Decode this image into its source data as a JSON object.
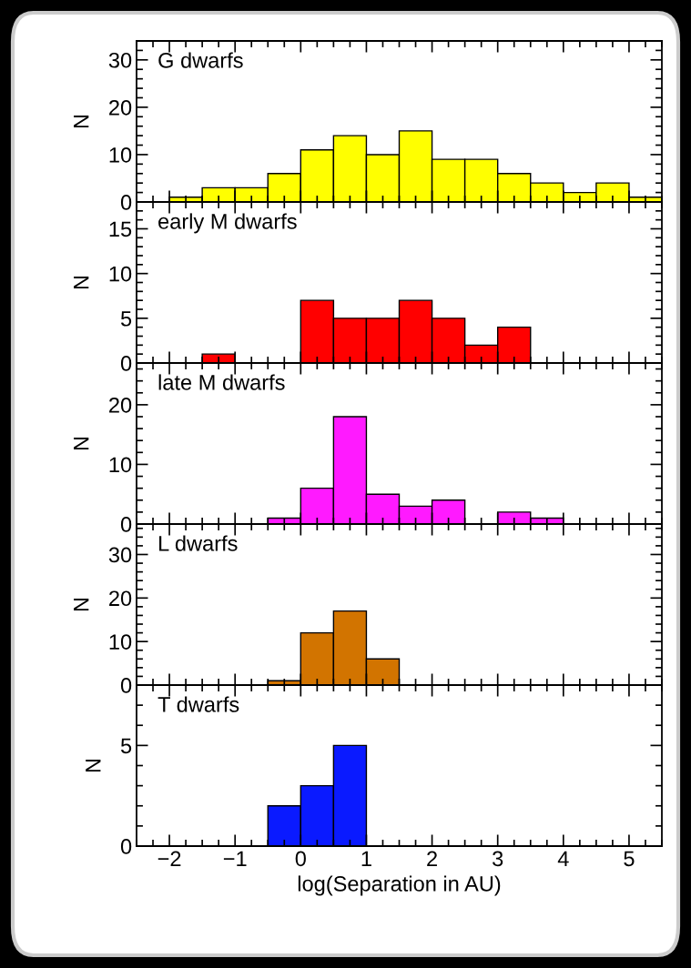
{
  "chart_data": [
    {
      "type": "histogram",
      "title": "G dwarfs",
      "ylabel": "N",
      "bins": [
        -2,
        -1.5,
        -1,
        -0.5,
        0,
        0.5,
        1,
        1.5,
        2,
        2.5,
        3,
        3.5,
        4,
        4.5,
        5,
        5.5
      ],
      "values": [
        1,
        3,
        3,
        6,
        11,
        14,
        10,
        15,
        9,
        9,
        6,
        4,
        2,
        4,
        1
      ],
      "color": "#ffff00",
      "xlim": [
        -2.5,
        5.5
      ],
      "xticks": [
        -2,
        -1,
        0,
        1,
        2,
        3,
        4,
        5
      ],
      "ylim": [
        0,
        34
      ],
      "yticks": [
        0,
        10,
        20,
        30
      ],
      "tick_labels": "y"
    },
    {
      "type": "histogram",
      "title": "early M dwarfs",
      "ylabel": "N",
      "bins": [
        -1.5,
        -1,
        -0.5,
        0,
        0.5,
        1,
        1.5,
        2,
        2.5,
        3,
        3.5
      ],
      "values": [
        1,
        0,
        0,
        7,
        5,
        5,
        7,
        5,
        2,
        4
      ],
      "color": "#ff0000",
      "xlim": [
        -2.5,
        5.5
      ],
      "xticks": [
        -2,
        -1,
        0,
        1,
        2,
        3,
        4,
        5
      ],
      "ylim": [
        0,
        18
      ],
      "yticks": [
        0,
        5,
        10,
        15
      ],
      "tick_labels": "y"
    },
    {
      "type": "histogram",
      "title": "late M dwarfs",
      "ylabel": "N",
      "bins": [
        -0.5,
        0,
        0.5,
        1,
        1.5,
        2,
        2.5,
        3,
        3.5,
        4
      ],
      "values": [
        1,
        6,
        18,
        5,
        3,
        4,
        0,
        2,
        1
      ],
      "color": "#ff1aff",
      "xlim": [
        -2.5,
        5.5
      ],
      "xticks": [
        -2,
        -1,
        0,
        1,
        2,
        3,
        4,
        5
      ],
      "ylim": [
        0,
        27
      ],
      "yticks": [
        0,
        10,
        20
      ],
      "tick_labels": "y"
    },
    {
      "type": "histogram",
      "title": "L dwarfs",
      "ylabel": "N",
      "bins": [
        -0.5,
        0,
        0.5,
        1,
        1.5
      ],
      "values": [
        1,
        12,
        17,
        6
      ],
      "color": "#d27400",
      "xlim": [
        -2.5,
        5.5
      ],
      "xticks": [
        -2,
        -1,
        0,
        1,
        2,
        3,
        4,
        5
      ],
      "ylim": [
        0,
        37
      ],
      "yticks": [
        0,
        10,
        20,
        30
      ],
      "tick_labels": "y"
    },
    {
      "type": "histogram",
      "title": "T dwarfs",
      "ylabel": "N",
      "xlabel": "log(Separation in AU)",
      "bins": [
        -0.5,
        0,
        0.5,
        1
      ],
      "values": [
        2,
        3,
        5
      ],
      "color": "#0a1aff",
      "xlim": [
        -2.5,
        5.5
      ],
      "xticks": [
        -2,
        -1,
        0,
        1,
        2,
        3,
        4,
        5
      ],
      "ylim": [
        0,
        8
      ],
      "yticks": [
        0,
        5
      ]
    }
  ]
}
